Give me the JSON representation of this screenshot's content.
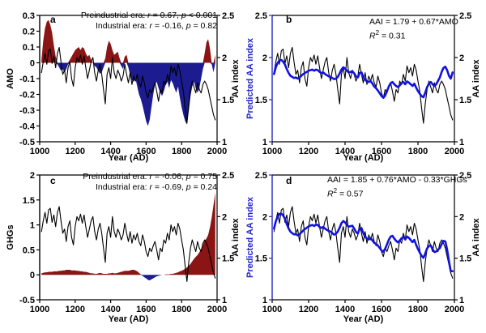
{
  "figure": {
    "background": "#ffffff"
  },
  "colors": {
    "positive_fill": "#8b1515",
    "negative_fill": "#1c1c90",
    "observed_line": "#000000",
    "predicted_line": "#1212e0",
    "blue_axis": "#2525cc"
  },
  "chart_data": {
    "type": "line",
    "x": {
      "label": "Year (AD)",
      "start": 1010,
      "step": 10,
      "lim": [
        1000,
        2000
      ],
      "tick_values": [
        1000,
        1200,
        1400,
        1600,
        1800,
        2000
      ],
      "tick_labels": [
        "1000",
        "1200",
        "1400",
        "1600",
        "1800",
        "2000"
      ]
    },
    "series": {
      "aa": {
        "name": "AA index",
        "values": [
          1.82,
          1.95,
          2.05,
          1.92,
          2.08,
          2.1,
          1.93,
          2.02,
          1.88,
          2.05,
          2.12,
          1.95,
          1.8,
          1.85,
          1.7,
          1.88,
          1.95,
          1.75,
          1.66,
          1.88,
          2.0,
          1.95,
          2.03,
          1.92,
          2.02,
          1.88,
          1.75,
          1.85,
          1.95,
          2.0,
          1.82,
          1.72,
          1.85,
          1.92,
          1.8,
          1.62,
          1.45,
          1.8,
          1.88,
          1.75,
          2.0,
          1.82,
          1.75,
          1.85,
          1.8,
          1.72,
          1.78,
          1.92,
          1.8,
          1.7,
          1.82,
          1.68,
          1.78,
          1.72,
          1.8,
          1.7,
          1.65,
          1.78,
          1.7,
          1.58,
          1.52,
          1.62,
          1.58,
          1.65,
          1.7,
          1.6,
          1.48,
          1.62,
          1.58,
          1.72,
          1.68,
          1.8,
          1.72,
          1.9,
          1.82,
          1.88,
          1.78,
          1.92,
          1.85,
          1.72,
          1.6,
          1.4,
          1.22,
          1.45,
          1.62,
          1.72,
          1.65,
          1.58,
          1.7,
          1.62,
          1.58,
          1.68,
          1.72,
          1.68,
          1.62,
          1.52,
          1.42,
          1.32,
          1.26
        ]
      },
      "amo": {
        "name": "AMO",
        "values": [
          0.02,
          0.14,
          0.22,
          0.26,
          0.27,
          0.24,
          0.19,
          0.11,
          0.04,
          -0.01,
          -0.03,
          -0.05,
          -0.04,
          -0.06,
          -0.04,
          -0.01,
          0.02,
          0.04,
          0.06,
          0.08,
          0.09,
          0.1,
          0.08,
          0.1,
          0.09,
          0.06,
          0.04,
          0.05,
          0.02,
          0.0,
          -0.02,
          -0.03,
          -0.05,
          -0.07,
          -0.06,
          -0.03,
          0.03,
          0.1,
          0.14,
          0.12,
          0.08,
          0.05,
          0.06,
          0.07,
          0.03,
          -0.02,
          -0.04,
          0.04,
          0.05,
          -0.03,
          -0.08,
          -0.11,
          -0.12,
          -0.1,
          -0.15,
          -0.2,
          -0.23,
          -0.27,
          -0.32,
          -0.37,
          -0.4,
          -0.36,
          -0.28,
          -0.2,
          -0.14,
          -0.12,
          -0.16,
          -0.19,
          -0.21,
          -0.18,
          -0.14,
          -0.12,
          -0.16,
          -0.11,
          -0.13,
          -0.16,
          -0.19,
          -0.15,
          -0.22,
          -0.28,
          -0.33,
          -0.37,
          -0.39,
          -0.31,
          -0.21,
          -0.15,
          -0.12,
          -0.16,
          -0.19,
          -0.16,
          -0.1,
          -0.04,
          0.06,
          0.13,
          0.15,
          0.09,
          -0.01,
          -0.06,
          0.05
        ]
      },
      "ghgs": {
        "name": "GHGs",
        "values": [
          0.03,
          0.04,
          0.05,
          0.05,
          0.06,
          0.06,
          0.06,
          0.07,
          0.07,
          0.07,
          0.08,
          0.08,
          0.09,
          0.09,
          0.1,
          0.1,
          0.1,
          0.09,
          0.09,
          0.09,
          0.08,
          0.08,
          0.07,
          0.07,
          0.06,
          0.06,
          0.05,
          0.04,
          0.03,
          0.03,
          0.02,
          0.02,
          0.03,
          0.04,
          0.03,
          0.02,
          0.02,
          0.02,
          0.03,
          0.03,
          0.04,
          0.03,
          0.03,
          0.04,
          0.05,
          0.06,
          0.07,
          0.08,
          0.08,
          0.08,
          0.09,
          0.1,
          0.1,
          0.09,
          0.07,
          0.04,
          0.01,
          -0.02,
          -0.05,
          -0.07,
          -0.1,
          -0.11,
          -0.09,
          -0.07,
          -0.05,
          -0.03,
          -0.02,
          -0.01,
          0.0,
          0.0,
          0.01,
          0.01,
          0.01,
          0.02,
          0.02,
          0.03,
          0.04,
          0.05,
          0.07,
          0.08,
          0.1,
          0.12,
          0.15,
          0.18,
          0.22,
          0.27,
          0.32,
          0.36,
          0.4,
          0.45,
          0.52,
          0.6,
          0.68,
          0.73,
          0.8,
          0.95,
          1.15,
          1.4,
          1.65
        ]
      }
    },
    "panels": [
      {
        "panel_label": "a",
        "left_axis": {
          "label": "AMO",
          "lim": [
            -0.5,
            0.3
          ],
          "color": "#000000",
          "tick_values": [
            0.3,
            0.2,
            0.1,
            0,
            -0.1,
            -0.2,
            -0.3,
            -0.4,
            -0.5
          ],
          "tick_labels": [
            "0.3",
            "0.2",
            "0.1",
            "0",
            "-0.1",
            "-0.2",
            "-0.3",
            "-0.4",
            "-0.5"
          ]
        },
        "right_axis": {
          "label": "AA index",
          "lim": [
            1,
            2.5
          ],
          "tick_values": [
            2.5,
            2,
            1.5,
            1
          ],
          "tick_labels": [
            "2.5",
            "2",
            "1.5",
            "1"
          ]
        },
        "area": {
          "series": "amo",
          "baseline": 0
        },
        "lines": [
          {
            "series": "aa",
            "axis": "right",
            "color": "#000000",
            "width": 1.1
          }
        ],
        "annotation": {
          "l1": [
            "Preindustrial era: ",
            "r",
            " = 0.67, ",
            "p",
            " < 0.001"
          ],
          "l2": [
            "Industrial era: ",
            "r",
            " = -0.16, ",
            "p",
            " = 0.82"
          ]
        }
      },
      {
        "panel_label": "b",
        "left_axis": {
          "label": "Predicted AA index",
          "lim": [
            1,
            2.5
          ],
          "color": "#2525cc",
          "tick_values": [
            2.5,
            2,
            1.5,
            1
          ],
          "tick_labels": [
            "2.5",
            "2",
            "1.5",
            "1"
          ]
        },
        "right_axis": {
          "label": "AA index",
          "lim": [
            1,
            2.5
          ],
          "tick_values": [
            2.5,
            2,
            1.5,
            1
          ],
          "tick_labels": [
            "2.5",
            "2",
            "1.5",
            "1"
          ]
        },
        "regression": {
          "output": "pred_b",
          "intercept": 1.79,
          "coef_amo": 0.67,
          "coef_ghgs": 0,
          "r2": 0.31
        },
        "lines": [
          {
            "series": "aa",
            "axis": "right",
            "color": "#000000",
            "width": 1.1
          },
          {
            "series": "pred_b",
            "axis": "left",
            "color": "#1212e0",
            "width": 2.6
          }
        ],
        "annotation": {
          "l1": [
            "AAI = 1.79 + 0.67*AMO"
          ],
          "l2": [
            "R",
            "2",
            " = 0.31"
          ]
        }
      },
      {
        "panel_label": "c",
        "left_axis": {
          "label": "GHGs",
          "lim": [
            -0.5,
            2
          ],
          "color": "#000000",
          "tick_values": [
            2,
            1.5,
            1,
            0.5,
            0,
            -0.5
          ],
          "tick_labels": [
            "2",
            "1.5",
            "1",
            "0.5",
            "0",
            "-0.5"
          ]
        },
        "right_axis": {
          "label": "AA index",
          "lim": [
            1,
            2.5
          ],
          "tick_values": [
            2.5,
            2,
            1.5,
            1
          ],
          "tick_labels": [
            "2.5",
            "2",
            "1.5",
            "1"
          ]
        },
        "area": {
          "series": "ghgs",
          "baseline": 0
        },
        "lines": [
          {
            "series": "aa",
            "axis": "right",
            "color": "#000000",
            "width": 1.1
          }
        ],
        "annotation": {
          "l1": [
            "Preindustrial era: ",
            "r",
            " = -0.06, ",
            "p",
            " = 0.75"
          ],
          "l2": [
            "Industrial era: ",
            "r",
            " = -0.69, ",
            "p",
            " = 0.24"
          ]
        }
      },
      {
        "panel_label": "d",
        "left_axis": {
          "label": "Predicted AA index",
          "lim": [
            1,
            2.5
          ],
          "color": "#2525cc",
          "tick_values": [
            2.5,
            2,
            1.5,
            1
          ],
          "tick_labels": [
            "2.5",
            "2",
            "1.5",
            "1"
          ]
        },
        "right_axis": {
          "label": "AA index",
          "lim": [
            1,
            2.5
          ],
          "tick_values": [
            2.5,
            2,
            1.5,
            1
          ],
          "tick_labels": [
            "2.5",
            "2",
            "1.5",
            "1"
          ]
        },
        "regression": {
          "output": "pred_d",
          "intercept": 1.85,
          "coef_amo": 0.76,
          "coef_ghgs": -0.33,
          "r2": 0.57
        },
        "lines": [
          {
            "series": "aa",
            "axis": "right",
            "color": "#000000",
            "width": 1.1
          },
          {
            "series": "pred_d",
            "axis": "left",
            "color": "#1212e0",
            "width": 2.6
          }
        ],
        "annotation": {
          "l1": [
            "AAI = 1.85 + 0.76*AMO - 0.33*GHGs"
          ],
          "l2": [
            "R",
            "2",
            " = 0.57"
          ]
        }
      }
    ]
  }
}
